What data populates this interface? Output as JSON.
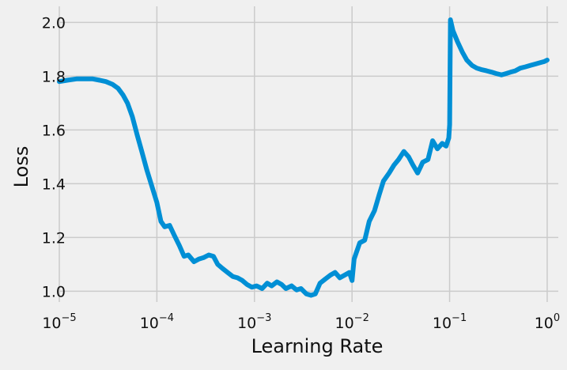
{
  "chart_data": {
    "type": "line",
    "title": "",
    "xlabel": "Learning Rate",
    "ylabel": "Loss",
    "x_scale": "log",
    "xlim": [
      1e-05,
      1.3
    ],
    "ylim": [
      0.96,
      2.06
    ],
    "grid": true,
    "line_color": "#008fd5",
    "background_color": "#f0f0f0",
    "grid_color": "#cbcbcb",
    "x_ticks": [
      {
        "value": 1e-05,
        "base": "10",
        "exp": "−5"
      },
      {
        "value": 0.0001,
        "base": "10",
        "exp": "−4"
      },
      {
        "value": 0.001,
        "base": "10",
        "exp": "−3"
      },
      {
        "value": 0.01,
        "base": "10",
        "exp": "−2"
      },
      {
        "value": 0.1,
        "base": "10",
        "exp": "−1"
      },
      {
        "value": 1,
        "base": "10",
        "exp": "0"
      }
    ],
    "y_ticks": [
      {
        "value": 1.0,
        "label": "1.0"
      },
      {
        "value": 1.2,
        "label": "1.2"
      },
      {
        "value": 1.4,
        "label": "1.4"
      },
      {
        "value": 1.6,
        "label": "1.6"
      },
      {
        "value": 1.8,
        "label": "1.8"
      },
      {
        "value": 2.0,
        "label": "2.0"
      }
    ],
    "series": [
      {
        "x": [
          1e-05,
          1.2e-05,
          1.5e-05,
          1.8e-05,
          2.2e-05,
          2.6e-05,
          3e-05,
          3.5e-05,
          4e-05,
          4.5e-05,
          5e-05,
          5.6e-05,
          6.3e-05,
          7e-05,
          7.9e-05,
          8.9e-05,
          0.0001,
          0.00011,
          0.00012,
          0.000135,
          0.00015,
          0.00017,
          0.00019,
          0.00021,
          0.00024,
          0.00027,
          0.0003,
          0.00034,
          0.00038,
          0.00042,
          0.00047,
          0.00053,
          0.0006,
          0.00067,
          0.00075,
          0.00084,
          0.00094,
          0.00105,
          0.0012,
          0.00135,
          0.0015,
          0.0017,
          0.0019,
          0.0021,
          0.0024,
          0.0027,
          0.003,
          0.0034,
          0.0038,
          0.0042,
          0.0047,
          0.0053,
          0.006,
          0.0067,
          0.0075,
          0.0084,
          0.0094,
          0.01,
          0.0105,
          0.012,
          0.0135,
          0.015,
          0.017,
          0.019,
          0.021,
          0.024,
          0.027,
          0.03,
          0.034,
          0.038,
          0.042,
          0.047,
          0.05,
          0.053,
          0.06,
          0.067,
          0.075,
          0.084,
          0.092,
          0.098,
          0.1,
          0.102,
          0.108,
          0.12,
          0.135,
          0.15,
          0.17,
          0.19,
          0.21,
          0.24,
          0.27,
          0.3,
          0.34,
          0.38,
          0.42,
          0.47,
          0.53,
          0.6,
          0.67,
          0.75,
          0.84,
          0.94,
          1.0
        ],
        "values": [
          1.78,
          1.785,
          1.79,
          1.79,
          1.79,
          1.785,
          1.78,
          1.77,
          1.755,
          1.73,
          1.7,
          1.65,
          1.58,
          1.52,
          1.45,
          1.39,
          1.33,
          1.26,
          1.24,
          1.245,
          1.21,
          1.17,
          1.13,
          1.135,
          1.11,
          1.12,
          1.125,
          1.135,
          1.13,
          1.1,
          1.085,
          1.07,
          1.055,
          1.05,
          1.04,
          1.025,
          1.015,
          1.02,
          1.01,
          1.03,
          1.02,
          1.035,
          1.025,
          1.01,
          1.02,
          1.005,
          1.01,
          0.99,
          0.985,
          0.99,
          1.03,
          1.045,
          1.06,
          1.07,
          1.05,
          1.06,
          1.07,
          1.04,
          1.12,
          1.18,
          1.19,
          1.26,
          1.3,
          1.36,
          1.41,
          1.44,
          1.47,
          1.49,
          1.52,
          1.5,
          1.47,
          1.44,
          1.46,
          1.48,
          1.49,
          1.56,
          1.53,
          1.55,
          1.54,
          1.57,
          1.62,
          2.01,
          1.97,
          1.93,
          1.89,
          1.86,
          1.84,
          1.83,
          1.825,
          1.82,
          1.815,
          1.81,
          1.805,
          1.81,
          1.815,
          1.82,
          1.83,
          1.835,
          1.84,
          1.845,
          1.85,
          1.855,
          1.86
        ]
      }
    ]
  }
}
